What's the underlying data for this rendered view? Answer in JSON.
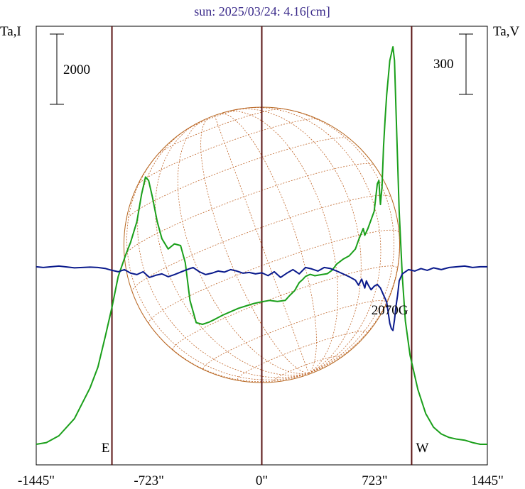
{
  "chart_data": {
    "type": "line",
    "title": "sun: 2025/03/24: 4.16[cm]",
    "left_axis_label": "Ta,I",
    "right_axis_label": "Ta,V",
    "x_range": [
      -1445,
      1445
    ],
    "x_ticks": [
      {
        "value": -1445,
        "label": "-1445\""
      },
      {
        "value": -723,
        "label": "-723\""
      },
      {
        "value": 0,
        "label": "0\""
      },
      {
        "value": 723,
        "label": "723\""
      },
      {
        "value": 1445,
        "label": "1445\""
      }
    ],
    "vertical_markers": [
      {
        "value": -960,
        "label": "E"
      },
      {
        "value": 0,
        "label": ""
      },
      {
        "value": 960,
        "label": "W"
      }
    ],
    "scale_bars": {
      "intensity": {
        "label": "2000",
        "value": 2000
      },
      "polarization": {
        "label": "300",
        "value": 300
      }
    },
    "annotations": [
      {
        "text": "2070G",
        "x": 820,
        "series": "V"
      }
    ],
    "grid": false,
    "legend": "none",
    "disk_grid": {
      "radius_arcsec": 960,
      "shown": true
    },
    "series": [
      {
        "id": "I",
        "color": "#1a9f1a",
        "axis": "left",
        "x": [
          -1445,
          -1380,
          -1300,
          -1200,
          -1100,
          -1050,
          -1000,
          -960,
          -920,
          -870,
          -840,
          -800,
          -770,
          -745,
          -725,
          -700,
          -670,
          -640,
          -600,
          -560,
          -520,
          -490,
          -460,
          -420,
          -380,
          -340,
          -300,
          -250,
          -200,
          -150,
          -100,
          -50,
          0,
          50,
          100,
          150,
          180,
          210,
          240,
          260,
          280,
          310,
          340,
          380,
          420,
          450,
          480,
          520,
          560,
          600,
          620,
          650,
          660,
          680,
          700,
          720,
          740,
          750,
          760,
          770,
          780,
          790,
          800,
          820,
          840,
          850,
          860,
          880,
          900,
          920,
          950,
          1000,
          1050,
          1100,
          1150,
          1200,
          1250,
          1300,
          1350,
          1400,
          1445
        ],
        "y": [
          -4200,
          -4150,
          -3950,
          -3450,
          -2550,
          -1950,
          -1000,
          -200,
          700,
          1350,
          1700,
          2300,
          3100,
          3600,
          3500,
          3000,
          2300,
          1800,
          1500,
          1650,
          1600,
          1100,
          0,
          -650,
          -700,
          -640,
          -550,
          -430,
          -330,
          -230,
          -160,
          -90,
          -40,
          0,
          -30,
          0,
          150,
          280,
          520,
          600,
          700,
          760,
          720,
          750,
          780,
          880,
          1060,
          1200,
          1300,
          1500,
          1760,
          2100,
          1900,
          2100,
          2350,
          2600,
          3400,
          3500,
          2800,
          3300,
          4500,
          5300,
          6000,
          7000,
          7400,
          7000,
          5500,
          2600,
          700,
          -600,
          -1600,
          -2600,
          -3300,
          -3700,
          -3900,
          -4000,
          -4050,
          -4080,
          -4150,
          -4200,
          -4200
        ],
        "ylim": [
          -4800,
          8000
        ]
      },
      {
        "id": "V",
        "color": "#0a1a8c",
        "axis": "right",
        "x": [
          -1445,
          -1400,
          -1300,
          -1200,
          -1100,
          -1050,
          -1000,
          -960,
          -920,
          -880,
          -840,
          -800,
          -760,
          -720,
          -680,
          -640,
          -600,
          -560,
          -520,
          -480,
          -440,
          -400,
          -360,
          -320,
          -280,
          -240,
          -200,
          -160,
          -120,
          -80,
          -40,
          0,
          40,
          80,
          120,
          160,
          200,
          240,
          280,
          320,
          360,
          400,
          440,
          480,
          520,
          560,
          600,
          620,
          640,
          660,
          670,
          680,
          700,
          720,
          740,
          760,
          780,
          800,
          810,
          820,
          830,
          840,
          850,
          860,
          870,
          880,
          900,
          940,
          980,
          1020,
          1060,
          1100,
          1150,
          1200,
          1250,
          1300,
          1350,
          1400,
          1445
        ],
        "y": [
          0,
          -2,
          2,
          -3,
          -1,
          -2,
          -5,
          -10,
          -14,
          -8,
          -18,
          -22,
          -14,
          -30,
          -24,
          -20,
          -28,
          -22,
          -15,
          -8,
          -2,
          -14,
          -22,
          -18,
          -12,
          -15,
          -8,
          -12,
          -18,
          -16,
          -20,
          -17,
          -25,
          -14,
          -30,
          -18,
          -8,
          -20,
          -2,
          -6,
          -12,
          -2,
          -5,
          -12,
          -20,
          -28,
          -38,
          -52,
          -35,
          -60,
          -40,
          -50,
          -65,
          -55,
          -50,
          -60,
          -80,
          -100,
          -130,
          -160,
          -175,
          -180,
          -150,
          -110,
          -80,
          -40,
          -20,
          -8,
          -12,
          -5,
          -10,
          -3,
          -8,
          -2,
          0,
          2,
          -2,
          0,
          0
        ],
        "ylim": [
          -560,
          680
        ]
      }
    ]
  }
}
